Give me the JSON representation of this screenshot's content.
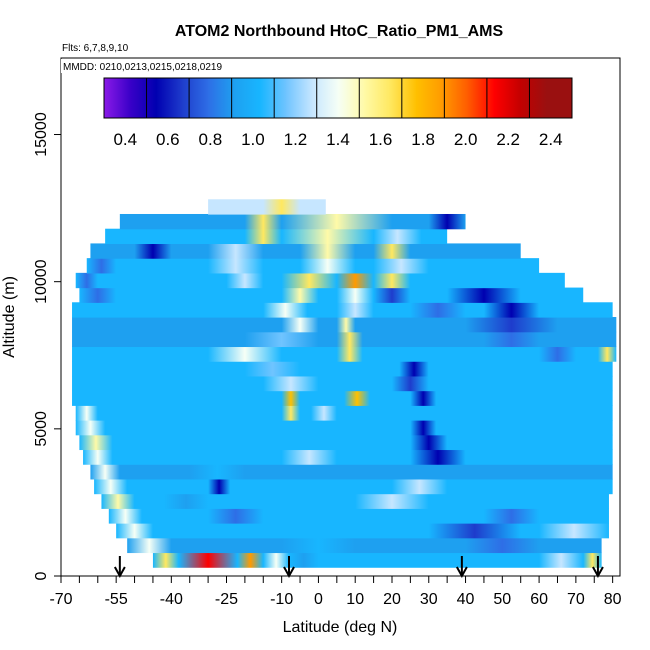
{
  "chart_data": {
    "type": "heatmap",
    "title": "ATOM2 Northbound HtoC_Ratio_PM1_AMS",
    "flights_label": "Flts: 6,7,8,9,10",
    "dates_label": "MMDD: 0210,0213,0215,0218,0219",
    "xlabel": "Latitude (deg N)",
    "ylabel": "Altitude (m)",
    "xlim": [
      -70,
      82
    ],
    "ylim": [
      0,
      17600
    ],
    "x_ticks": [
      {
        "value": -70,
        "label": "-70"
      },
      {
        "value": -55,
        "label": "-55"
      },
      {
        "value": -40,
        "label": "-40"
      },
      {
        "value": -25,
        "label": "-25"
      },
      {
        "value": -10,
        "label": "-10"
      },
      {
        "value": 0,
        "label": "0"
      },
      {
        "value": 10,
        "label": "10"
      },
      {
        "value": 20,
        "label": "20"
      },
      {
        "value": 30,
        "label": "30"
      },
      {
        "value": 40,
        "label": "40"
      },
      {
        "value": 50,
        "label": "50"
      },
      {
        "value": 60,
        "label": "60"
      },
      {
        "value": 70,
        "label": "70"
      },
      {
        "value": 80,
        "label": "80"
      }
    ],
    "x_minor_ticks": [
      -65,
      -60,
      -50,
      -45,
      -35,
      -30,
      -20,
      -15,
      -5,
      5,
      15,
      25,
      35,
      45,
      55,
      65,
      75
    ],
    "y_ticks": [
      {
        "value": 0,
        "label": "0"
      },
      {
        "value": 5000,
        "label": "5000"
      },
      {
        "value": 10000,
        "label": "10000"
      },
      {
        "value": 15000,
        "label": "15000"
      }
    ],
    "colorbar": {
      "range": [
        0.3,
        2.5
      ],
      "ticks": [
        "0.4",
        "0.6",
        "0.8",
        "1.0",
        "1.2",
        "1.4",
        "1.6",
        "1.8",
        "2.0",
        "2.2",
        "2.4"
      ],
      "colors": [
        "#8b1ae8",
        "#3a00c8",
        "#0000b0",
        "#1e3ccc",
        "#2e6ee6",
        "#1ea0f0",
        "#18b6ff",
        "#70c4ff",
        "#c6e6ff",
        "#f6fff6",
        "#fffaa8",
        "#ffe860",
        "#ffc000",
        "#ff9a00",
        "#ff5a00",
        "#ff0000",
        "#c40000",
        "#9a1010"
      ]
    },
    "profile_markers_lat": [
      -54,
      -8,
      39,
      76
    ],
    "bands": [
      {
        "alt": [
          300,
          800
        ],
        "lat": [
          -45,
          77
        ],
        "base": 1.05,
        "patches": [
          {
            "lat": [
              -45,
              -38
            ],
            "value": 1.7
          },
          {
            "lat": [
              -38,
              -22
            ],
            "value": 2.25
          },
          {
            "lat": [
              -22,
              -15
            ],
            "value": 1.9
          },
          {
            "lat": [
              -15,
              -8
            ],
            "value": 1.5
          },
          {
            "lat": [
              -8,
              0
            ],
            "value": 1.0
          },
          {
            "lat": [
              0,
              60
            ],
            "value": 1.1
          },
          {
            "lat": [
              60,
              72
            ],
            "value": 1.3
          },
          {
            "lat": [
              72,
              77
            ],
            "value": 1.75
          }
        ]
      },
      {
        "alt": [
          800,
          1300
        ],
        "lat": [
          -52,
          77
        ],
        "base": 1.0,
        "patches": [
          {
            "lat": [
              -52,
              -40
            ],
            "value": 1.45
          },
          {
            "lat": [
              -10,
              10
            ],
            "value": 1.15
          },
          {
            "lat": [
              40,
              60
            ],
            "value": 0.85
          }
        ]
      },
      {
        "alt": [
          1300,
          1800
        ],
        "lat": [
          -55,
          79
        ],
        "base": 1.05,
        "patches": [
          {
            "lat": [
              -55,
              -45
            ],
            "value": 1.5
          },
          {
            "lat": [
              30,
              55
            ],
            "value": 0.75
          },
          {
            "lat": [
              60,
              79
            ],
            "value": 1.35
          }
        ]
      },
      {
        "alt": [
          1800,
          2300
        ],
        "lat": [
          -57,
          79
        ],
        "base": 1.1,
        "patches": [
          {
            "lat": [
              -57,
              -48
            ],
            "value": 1.45
          },
          {
            "lat": [
              -30,
              -15
            ],
            "value": 0.9
          },
          {
            "lat": [
              45,
              60
            ],
            "value": 0.8
          }
        ]
      },
      {
        "alt": [
          2300,
          2800
        ],
        "lat": [
          -59,
          79
        ],
        "base": 1.05,
        "patches": [
          {
            "lat": [
              -59,
              -50
            ],
            "value": 1.55
          },
          {
            "lat": [
              -42,
              -30
            ],
            "value": 0.95
          },
          {
            "lat": [
              10,
              30
            ],
            "value": 1.3
          }
        ]
      },
      {
        "alt": [
          2800,
          3300
        ],
        "lat": [
          -61,
          80
        ],
        "base": 1.1,
        "patches": [
          {
            "lat": [
              -61,
              -52
            ],
            "value": 1.5
          },
          {
            "lat": [
              -30,
              -24
            ],
            "value": 0.55
          },
          {
            "lat": [
              20,
              35
            ],
            "value": 1.35
          }
        ]
      },
      {
        "alt": [
          3300,
          3800
        ],
        "lat": [
          -62,
          80
        ],
        "base": 1.0,
        "patches": [
          {
            "lat": [
              -62,
              -54
            ],
            "value": 1.45
          },
          {
            "lat": [
              -35,
              -20
            ],
            "value": 1.15
          }
        ]
      },
      {
        "alt": [
          3800,
          4300
        ],
        "lat": [
          -64,
          80
        ],
        "base": 1.05,
        "patches": [
          {
            "lat": [
              -64,
              -56
            ],
            "value": 1.5
          },
          {
            "lat": [
              -10,
              5
            ],
            "value": 1.3
          },
          {
            "lat": [
              25,
              40
            ],
            "value": 0.6
          }
        ]
      },
      {
        "alt": [
          4300,
          4800
        ],
        "lat": [
          -65,
          80
        ],
        "base": 1.1,
        "patches": [
          {
            "lat": [
              -65,
              -56
            ],
            "value": 1.55
          },
          {
            "lat": [
              25,
              35
            ],
            "value": 0.65
          }
        ]
      },
      {
        "alt": [
          4800,
          5300
        ],
        "lat": [
          -66,
          80
        ],
        "base": 1.1,
        "patches": [
          {
            "lat": [
              -66,
              -58
            ],
            "value": 1.5
          },
          {
            "lat": [
              25,
              32
            ],
            "value": 0.6
          }
        ]
      },
      {
        "alt": [
          5300,
          5800
        ],
        "lat": [
          -66,
          80
        ],
        "base": 1.15,
        "patches": [
          {
            "lat": [
              -66,
              -60
            ],
            "value": 1.45
          },
          {
            "lat": [
              -10,
              -5
            ],
            "value": 1.75
          },
          {
            "lat": [
              -2,
              5
            ],
            "value": 1.35
          }
        ]
      },
      {
        "alt": [
          5800,
          6300
        ],
        "lat": [
          -67,
          80
        ],
        "base": 1.05,
        "patches": [
          {
            "lat": [
              -10,
              -5
            ],
            "value": 1.8
          },
          {
            "lat": [
              7,
              14
            ],
            "value": 1.85
          },
          {
            "lat": [
              25,
              32
            ],
            "value": 0.65
          }
        ]
      },
      {
        "alt": [
          6300,
          6800
        ],
        "lat": [
          -67,
          80
        ],
        "base": 1.1,
        "patches": [
          {
            "lat": [
              -15,
              0
            ],
            "value": 1.35
          },
          {
            "lat": [
              20,
              30
            ],
            "value": 0.75
          }
        ]
      },
      {
        "alt": [
          6800,
          7300
        ],
        "lat": [
          -67,
          80
        ],
        "base": 1.15,
        "patches": [
          {
            "lat": [
              -20,
              -5
            ],
            "value": 1.25
          },
          {
            "lat": [
              22,
              30
            ],
            "value": 0.65
          }
        ]
      },
      {
        "alt": [
          7300,
          7800
        ],
        "lat": [
          -67,
          81
        ],
        "base": 1.05,
        "patches": [
          {
            "lat": [
              -30,
              -10
            ],
            "value": 1.45
          },
          {
            "lat": [
              5,
              12
            ],
            "value": 1.7
          },
          {
            "lat": [
              60,
              70
            ],
            "value": 0.8
          },
          {
            "lat": [
              76,
              81
            ],
            "value": 1.7
          }
        ]
      },
      {
        "alt": [
          7800,
          8300
        ],
        "lat": [
          -67,
          81
        ],
        "base": 1.0,
        "patches": [
          {
            "lat": [
              -20,
              0
            ],
            "value": 1.25
          },
          {
            "lat": [
              5,
              12
            ],
            "value": 1.65
          },
          {
            "lat": [
              45,
              60
            ],
            "value": 0.8
          }
        ]
      },
      {
        "alt": [
          8300,
          8800
        ],
        "lat": [
          -67,
          81
        ],
        "base": 0.95,
        "patches": [
          {
            "lat": [
              -10,
              0
            ],
            "value": 1.45
          },
          {
            "lat": [
              5,
              10
            ],
            "value": 1.6
          },
          {
            "lat": [
              40,
              65
            ],
            "value": 0.75
          }
        ]
      },
      {
        "alt": [
          8800,
          9300
        ],
        "lat": [
          -67,
          80
        ],
        "base": 1.05,
        "patches": [
          {
            "lat": [
              -15,
              -3
            ],
            "value": 1.5
          },
          {
            "lat": [
              5,
              15
            ],
            "value": 1.4
          },
          {
            "lat": [
              25,
              40
            ],
            "value": 0.8
          },
          {
            "lat": [
              45,
              60
            ],
            "value": 0.65
          }
        ]
      },
      {
        "alt": [
          9300,
          9800
        ],
        "lat": [
          -65,
          72
        ],
        "base": 1.05,
        "patches": [
          {
            "lat": [
              -65,
              -55
            ],
            "value": 0.85
          },
          {
            "lat": [
              -10,
              0
            ],
            "value": 1.6
          },
          {
            "lat": [
              5,
              15
            ],
            "value": 1.45
          },
          {
            "lat": [
              15,
              25
            ],
            "value": 0.75
          },
          {
            "lat": [
              35,
              55
            ],
            "value": 0.6
          }
        ]
      },
      {
        "alt": [
          9800,
          10300
        ],
        "lat": [
          -66,
          67
        ],
        "base": 1.1,
        "patches": [
          {
            "lat": [
              -66,
              -60
            ],
            "value": 0.8
          },
          {
            "lat": [
              -25,
              -15
            ],
            "value": 1.3
          },
          {
            "lat": [
              -10,
              5
            ],
            "value": 1.65
          },
          {
            "lat": [
              5,
              15
            ],
            "value": 2.0
          },
          {
            "lat": [
              15,
              25
            ],
            "value": 1.7
          }
        ]
      },
      {
        "alt": [
          10300,
          10800
        ],
        "lat": [
          -63,
          60
        ],
        "base": 1.05,
        "patches": [
          {
            "lat": [
              -63,
              -55
            ],
            "value": 0.85
          },
          {
            "lat": [
              -30,
              -15
            ],
            "value": 1.35
          },
          {
            "lat": [
              -5,
              10
            ],
            "value": 1.5
          },
          {
            "lat": [
              15,
              30
            ],
            "value": 1.3
          }
        ]
      },
      {
        "alt": [
          10800,
          11300
        ],
        "lat": [
          -62,
          55
        ],
        "base": 1.0,
        "patches": [
          {
            "lat": [
              -50,
              -40
            ],
            "value": 0.55
          },
          {
            "lat": [
              -30,
              -15
            ],
            "value": 1.4
          },
          {
            "lat": [
              -5,
              10
            ],
            "value": 1.6
          },
          {
            "lat": [
              15,
              25
            ],
            "value": 1.7
          }
        ]
      },
      {
        "alt": [
          11300,
          11800
        ],
        "lat": [
          -58,
          35
        ],
        "base": 1.05,
        "patches": [
          {
            "lat": [
              -20,
              -10
            ],
            "value": 1.7
          },
          {
            "lat": [
              -10,
              15
            ],
            "value": 1.55
          },
          {
            "lat": [
              15,
              28
            ],
            "value": 1.4
          }
        ]
      },
      {
        "alt": [
          11800,
          12300
        ],
        "lat": [
          -54,
          40
        ],
        "base": 0.95,
        "patches": [
          {
            "lat": [
              -20,
              -10
            ],
            "value": 1.75
          },
          {
            "lat": [
              -10,
              20
            ],
            "value": 1.6
          },
          {
            "lat": [
              30,
              40
            ],
            "value": 0.55
          }
        ]
      },
      {
        "alt": [
          12300,
          12800
        ],
        "lat": [
          -30,
          2
        ],
        "base": 1.3,
        "patches": [
          {
            "lat": [
              -15,
              -5
            ],
            "value": 1.65
          }
        ]
      }
    ]
  }
}
